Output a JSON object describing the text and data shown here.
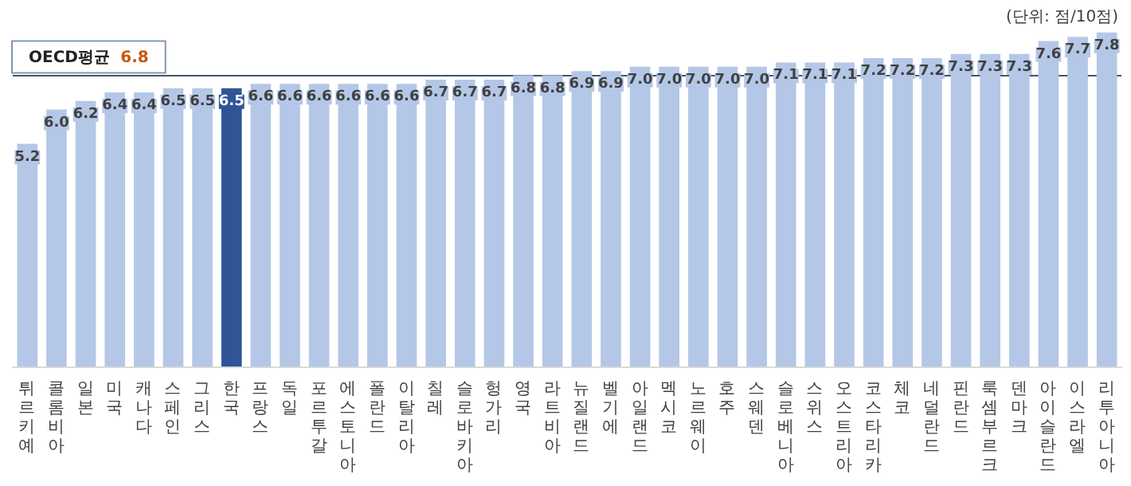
{
  "chart_data": {
    "type": "bar",
    "annotations": [
      "(단위: 점/10점)"
    ],
    "categories": [
      "튀르키예",
      "콜롬비아",
      "일본",
      "미국",
      "캐나다",
      "스페인",
      "그리스",
      "한국",
      "프랑스",
      "독일",
      "포르투갈",
      "에스토니아",
      "폴란드",
      "이탈리아",
      "칠레",
      "슬로바키아",
      "헝가리",
      "영국",
      "라트비아",
      "뉴질랜드",
      "벨기에",
      "아일랜드",
      "멕시코",
      "노르웨이",
      "호주",
      "스웨덴",
      "슬로베니아",
      "스위스",
      "오스트리아",
      "코스타리카",
      "체코",
      "네덜란드",
      "핀란드",
      "룩셈부르크",
      "덴마크",
      "아이슬란드",
      "이스라엘",
      "리투아니아"
    ],
    "values": [
      5.2,
      6.0,
      6.2,
      6.4,
      6.4,
      6.5,
      6.5,
      6.5,
      6.6,
      6.6,
      6.6,
      6.6,
      6.6,
      6.6,
      6.7,
      6.7,
      6.7,
      6.8,
      6.8,
      6.9,
      6.9,
      7.0,
      7.0,
      7.0,
      7.0,
      7.0,
      7.1,
      7.1,
      7.1,
      7.2,
      7.2,
      7.2,
      7.3,
      7.3,
      7.3,
      7.6,
      7.7,
      7.8
    ],
    "colors": [
      "#b4c7e7",
      "#b4c7e7",
      "#b4c7e7",
      "#b4c7e7",
      "#b4c7e7",
      "#b4c7e7",
      "#b4c7e7",
      "#2f5597",
      "#b4c7e7",
      "#b4c7e7",
      "#b4c7e7",
      "#b4c7e7",
      "#b4c7e7",
      "#b4c7e7",
      "#b4c7e7",
      "#b4c7e7",
      "#b4c7e7",
      "#b4c7e7",
      "#b4c7e7",
      "#b4c7e7",
      "#b4c7e7",
      "#b4c7e7",
      "#b4c7e7",
      "#b4c7e7",
      "#b4c7e7",
      "#b4c7e7",
      "#b4c7e7",
      "#b4c7e7",
      "#b4c7e7",
      "#b4c7e7",
      "#b4c7e7",
      "#b4c7e7",
      "#b4c7e7",
      "#b4c7e7",
      "#b4c7e7",
      "#b4c7e7",
      "#b4c7e7",
      "#b4c7e7"
    ],
    "value_labels": [
      "5.2",
      "6.0",
      "6.2",
      "6.4",
      "6.4",
      "6.5",
      "6.5",
      "6.5",
      "6.6",
      "6.6",
      "6.6",
      "6.6",
      "6.6",
      "6.6",
      "6.7",
      "6.7",
      "6.7",
      "6.8",
      "6.8",
      "6.9",
      "6.9",
      "7.0",
      "7.0",
      "7.0",
      "7.0",
      "7.0",
      "7.1",
      "7.1",
      "7.1",
      "7.2",
      "7.2",
      "7.2",
      "7.3",
      "7.3",
      "7.3",
      "7.6",
      "7.7",
      "7.8"
    ],
    "tick_labels": "x",
    "ref_lines": [
      {
        "axis": "y",
        "value": 6.8,
        "label": "OECD평균 6.8",
        "color": "#44546a"
      }
    ]
  }
}
